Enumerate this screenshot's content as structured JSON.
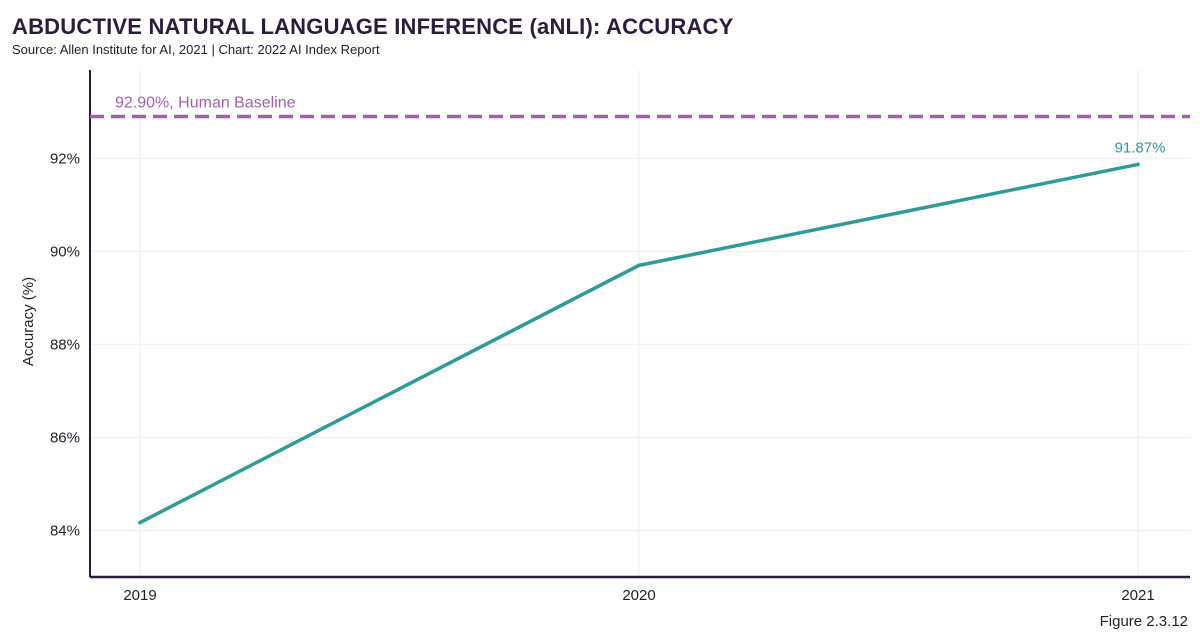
{
  "title": "ABDUCTIVE NATURAL LANGUAGE INFERENCE (aNLI): ACCURACY",
  "source": "Source: Allen Institute for AI, 2021 | Chart: 2022 AI Index Report",
  "figure_label": "Figure 2.3.12",
  "colors": {
    "series": "#2e9a9a",
    "baseline": "#a35fae",
    "axis": "#2b1b3d",
    "grid": "#efefef"
  },
  "chart_data": {
    "type": "line",
    "x": [
      "2019",
      "2020",
      "2021"
    ],
    "series": [
      {
        "values": [
          84.17,
          89.7,
          91.87
        ]
      }
    ],
    "ylabel": "Accuracy (%)",
    "xlabel": "",
    "yticks": [
      "84%",
      "86%",
      "88%",
      "90%",
      "92%"
    ],
    "ytick_values": [
      84,
      86,
      88,
      90,
      92
    ],
    "ylim": [
      83,
      93.9
    ],
    "grid": true,
    "annotations": [
      {
        "type": "point_label",
        "x": "2021",
        "text": "91.87%"
      },
      {
        "type": "hline",
        "y": 92.9,
        "text": "92.90%, Human Baseline",
        "style": "dashed"
      }
    ]
  }
}
